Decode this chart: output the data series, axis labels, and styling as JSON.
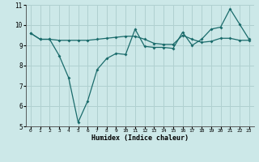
{
  "line1_x": [
    0,
    1,
    2,
    3,
    4,
    5,
    6,
    7,
    8,
    9,
    10,
    11,
    12,
    13,
    14,
    15,
    16,
    17,
    18,
    19,
    20,
    21,
    22,
    23
  ],
  "line1_y": [
    9.6,
    9.3,
    9.3,
    9.25,
    9.25,
    9.25,
    9.25,
    9.3,
    9.35,
    9.4,
    9.45,
    9.45,
    9.3,
    9.1,
    9.05,
    9.05,
    9.5,
    9.3,
    9.15,
    9.2,
    9.35,
    9.35,
    9.25,
    9.25
  ],
  "line2_x": [
    0,
    1,
    2,
    3,
    4,
    5,
    6,
    7,
    8,
    9,
    10,
    11,
    12,
    13,
    14,
    15,
    16,
    17,
    18,
    19,
    20,
    21,
    22,
    23
  ],
  "line2_y": [
    9.6,
    9.3,
    9.3,
    8.5,
    7.4,
    5.2,
    6.25,
    7.8,
    8.35,
    8.6,
    8.55,
    9.8,
    8.95,
    8.9,
    8.9,
    8.85,
    9.65,
    9.0,
    9.3,
    9.8,
    9.9,
    10.8,
    10.05,
    9.3
  ],
  "color": "#1a6b6b",
  "bg_color": "#cce8e8",
  "grid_color": "#b0d0d0",
  "xlabel": "Humidex (Indice chaleur)",
  "ylim": [
    5,
    11
  ],
  "xlim_min": -0.5,
  "xlim_max": 23.5,
  "yticks": [
    5,
    6,
    7,
    8,
    9,
    10,
    11
  ],
  "xticks": [
    0,
    1,
    2,
    3,
    4,
    5,
    6,
    7,
    8,
    9,
    10,
    11,
    12,
    13,
    14,
    15,
    16,
    17,
    18,
    19,
    20,
    21,
    22,
    23
  ]
}
